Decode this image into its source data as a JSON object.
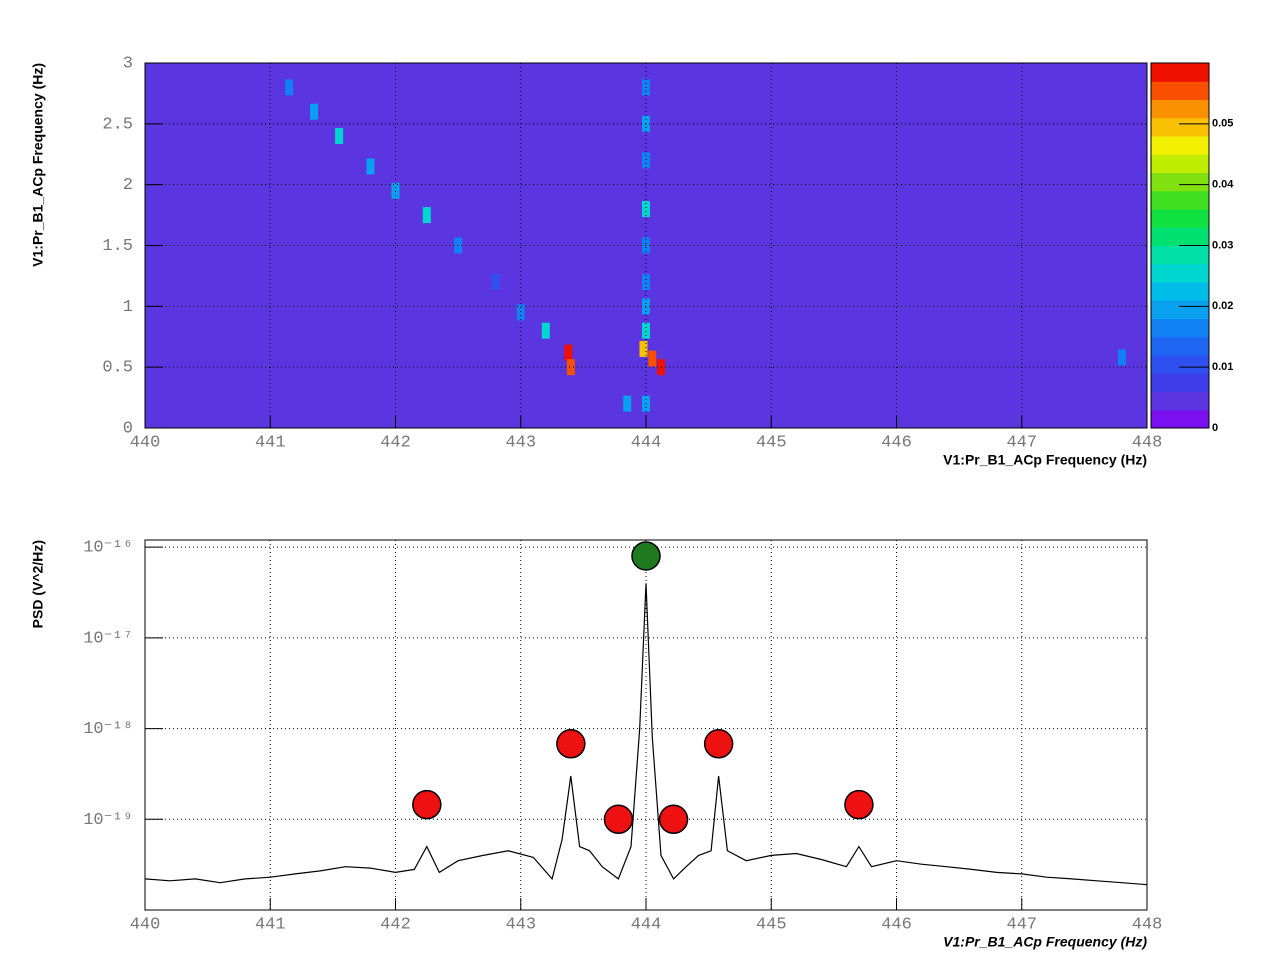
{
  "chart_data": [
    {
      "type": "heatmap",
      "xlabel": "V1:Pr_B1_ACp Frequency (Hz)",
      "ylabel": "V1:Pr_B1_ACp Frequency (Hz)",
      "xlim": [
        440,
        448
      ],
      "ylim": [
        0,
        3
      ],
      "xticks": [
        440,
        441,
        442,
        443,
        444,
        445,
        446,
        447,
        448
      ],
      "yticks": [
        0,
        0.5,
        1,
        1.5,
        2,
        2.5,
        3
      ],
      "zlim": [
        0,
        0.06
      ],
      "zticks": [
        0,
        0.01,
        0.02,
        0.03,
        0.04,
        0.05
      ],
      "grid": true,
      "colors": [
        "#7a10f0",
        "#5b35e0",
        "#3c3ce8",
        "#2f50f0",
        "#1e66f2",
        "#1080f2",
        "#0aa0f0",
        "#00bce8",
        "#00d6d0",
        "#00e0a8",
        "#00e070",
        "#10e040",
        "#40e020",
        "#80e010",
        "#c0ec00",
        "#f0f000",
        "#f8c000",
        "#f89000",
        "#f85000",
        "#f01000"
      ],
      "background_value": 0.004,
      "x": [
        441.15,
        441.35,
        441.55,
        441.8,
        442.0,
        442.25,
        442.5,
        442.8,
        443.0,
        443.2,
        443.38,
        443.4,
        444.0,
        444.0,
        444.0,
        444.0,
        444.0,
        444.0,
        444.0,
        444.0,
        443.98,
        444.05,
        444.12,
        443.85,
        444.0,
        447.8
      ],
      "y": [
        2.8,
        2.6,
        2.4,
        2.15,
        1.95,
        1.75,
        1.5,
        1.2,
        0.95,
        0.8,
        0.62,
        0.5,
        2.8,
        2.5,
        2.2,
        1.8,
        1.5,
        1.2,
        1.0,
        0.8,
        0.65,
        0.57,
        0.5,
        0.2,
        0.2,
        0.58
      ],
      "values": [
        0.015,
        0.02,
        0.025,
        0.02,
        0.02,
        0.025,
        0.015,
        0.01,
        0.015,
        0.025,
        0.06,
        0.055,
        0.015,
        0.02,
        0.015,
        0.025,
        0.015,
        0.015,
        0.02,
        0.025,
        0.05,
        0.055,
        0.06,
        0.02,
        0.02,
        0.015
      ]
    },
    {
      "type": "line",
      "xlabel": "V1:Pr_B1_ACp Frequency (Hz)",
      "ylabel": "PSD (V^2/Hz)",
      "xlim": [
        440,
        448
      ],
      "ylim": [
        1e-20,
        1.2e-16
      ],
      "log_y": true,
      "grid": true,
      "xticks": [
        440,
        441,
        442,
        443,
        444,
        445,
        446,
        447,
        448
      ],
      "yticks": [
        {
          "value": 1e-19,
          "label": "10⁻¹⁹"
        },
        {
          "value": 1e-18,
          "label": "10⁻¹⁸"
        },
        {
          "value": 1e-17,
          "label": "10⁻¹⁷"
        },
        {
          "value": 1e-16,
          "label": "10⁻¹⁶"
        }
      ],
      "color": "#000000",
      "x": [
        440,
        440.2,
        440.4,
        440.6,
        440.8,
        441,
        441.2,
        441.4,
        441.6,
        441.8,
        442,
        442.15,
        442.25,
        442.35,
        442.5,
        442.7,
        442.9,
        443.1,
        443.25,
        443.33,
        443.4,
        443.47,
        443.55,
        443.65,
        443.78,
        443.88,
        443.95,
        444,
        444.05,
        444.12,
        444.22,
        444.32,
        444.42,
        444.52,
        444.58,
        444.65,
        444.8,
        445,
        445.2,
        445.4,
        445.6,
        445.7,
        445.8,
        446,
        446.2,
        446.4,
        446.6,
        446.8,
        447,
        447.2,
        447.4,
        447.6,
        447.8,
        448
      ],
      "values": [
        2.2e-20,
        2.1e-20,
        2.2e-20,
        2e-20,
        2.2e-20,
        2.3e-20,
        2.5e-20,
        2.7e-20,
        3e-20,
        2.9e-20,
        2.6e-20,
        2.8e-20,
        5e-20,
        2.6e-20,
        3.5e-20,
        4e-20,
        4.5e-20,
        3.8e-20,
        2.2e-20,
        6e-20,
        3e-19,
        5e-20,
        4.5e-20,
        3e-20,
        2.2e-20,
        5e-20,
        1e-18,
        4e-17,
        8e-19,
        4e-20,
        2.2e-20,
        3e-20,
        4e-20,
        4.5e-20,
        3e-19,
        4.5e-20,
        3.5e-20,
        4e-20,
        4.2e-20,
        3.6e-20,
        3e-20,
        5e-20,
        3e-20,
        3.5e-20,
        3.2e-20,
        3e-20,
        2.8e-20,
        2.6e-20,
        2.5e-20,
        2.3e-20,
        2.2e-20,
        2.1e-20,
        2e-20,
        1.9e-20
      ],
      "points": [
        {
          "x": 444.0,
          "value": 8e-17,
          "color": "#1f7a1f"
        },
        {
          "x": 442.25,
          "value": 1.45e-19,
          "color": "#ee1111"
        },
        {
          "x": 443.4,
          "value": 6.8e-19,
          "color": "#ee1111"
        },
        {
          "x": 443.78,
          "value": 1e-19,
          "color": "#ee1111"
        },
        {
          "x": 444.22,
          "value": 1e-19,
          "color": "#ee1111"
        },
        {
          "x": 444.58,
          "value": 6.8e-19,
          "color": "#ee1111"
        },
        {
          "x": 445.7,
          "value": 1.45e-19,
          "color": "#ee1111"
        }
      ]
    }
  ]
}
